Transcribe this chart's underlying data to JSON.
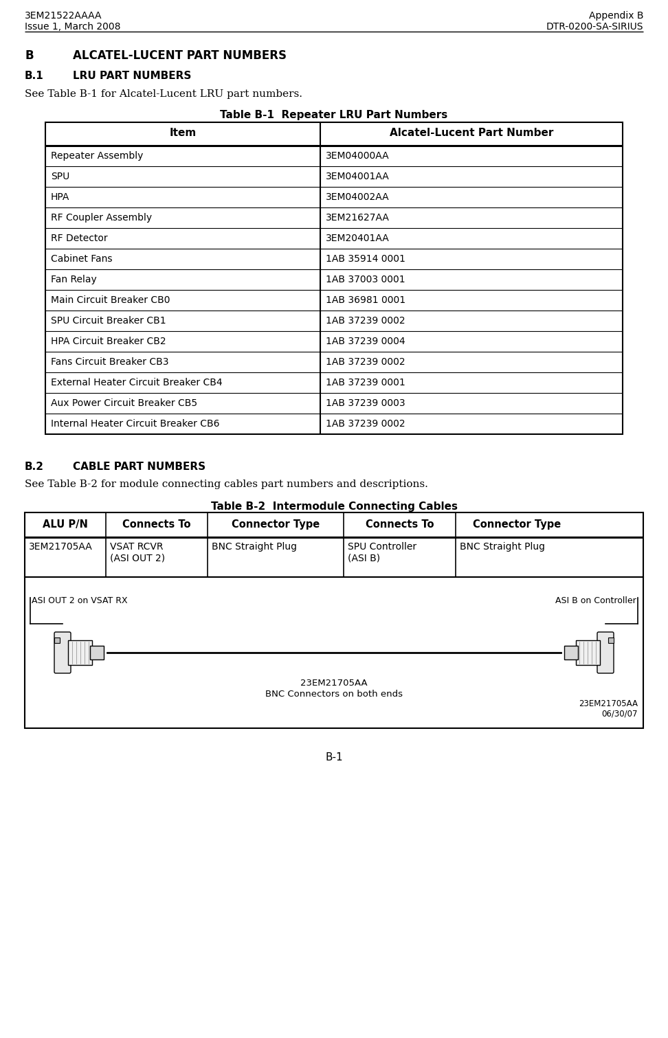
{
  "header_left_line1": "3EM21522AAAA",
  "header_left_line2": "Issue 1, March 2008",
  "header_right_line1": "Appendix B",
  "header_right_line2": "DTR-0200-SA-SIRIUS",
  "section_b_label": "B",
  "section_b_title": "ALCATEL-LUCENT PART NUMBERS",
  "section_b1_label": "B.1",
  "section_b1_title": "LRU PART NUMBERS",
  "section_b1_text": "See Table B-1 for Alcatel-Lucent LRU part numbers.",
  "table1_title": "Table B-1  Repeater LRU Part Numbers",
  "table1_headers": [
    "Item",
    "Alcatel-Lucent Part Number"
  ],
  "table1_rows": [
    [
      "Repeater Assembly",
      "3EM04000AA"
    ],
    [
      "SPU",
      "3EM04001AA"
    ],
    [
      "HPA",
      "3EM04002AA"
    ],
    [
      "RF Coupler Assembly",
      "3EM21627AA"
    ],
    [
      "RF Detector",
      "3EM20401AA"
    ],
    [
      "Cabinet Fans",
      "1AB 35914 0001"
    ],
    [
      "Fan Relay",
      "1AB 37003 0001"
    ],
    [
      "Main Circuit Breaker CB0",
      "1AB 36981 0001"
    ],
    [
      "SPU Circuit Breaker CB1",
      "1AB 37239 0002"
    ],
    [
      "HPA Circuit Breaker CB2",
      "1AB 37239 0004"
    ],
    [
      "Fans Circuit Breaker CB3",
      "1AB 37239 0002"
    ],
    [
      "External Heater Circuit Breaker CB4",
      "1AB 37239 0001"
    ],
    [
      "Aux Power Circuit Breaker CB5",
      "1AB 37239 0003"
    ],
    [
      "Internal Heater Circuit Breaker CB6",
      "1AB 37239 0002"
    ]
  ],
  "section_b2_label": "B.2",
  "section_b2_title": "CABLE PART NUMBERS",
  "section_b2_text": "See Table B-2 for module connecting cables part numbers and descriptions.",
  "table2_title": "Table B-2  Intermodule Connecting Cables",
  "table2_headers": [
    "ALU P/N",
    "Connects To",
    "Connector Type",
    "Connects To",
    "Connector Type"
  ],
  "table2_col_widths": [
    118,
    148,
    198,
    163,
    179
  ],
  "table2_rows": [
    [
      "3EM21705AA",
      "VSAT RCVR\n(ASI OUT 2)",
      "BNC Straight Plug",
      "SPU Controller\n(ASI B)",
      "BNC Straight Plug"
    ]
  ],
  "cable_label_left": "ASI OUT 2 on VSAT RX",
  "cable_label_right": "ASI B on Controller",
  "cable_center_line1": "23EM21705AA",
  "cable_center_line2": "BNC Connectors on both ends",
  "cable_version_line1": "23EM21705AA",
  "cable_version_line2": "06/30/07",
  "footer_text": "B-1",
  "bg_color": "#ffffff",
  "text_color": "#000000"
}
